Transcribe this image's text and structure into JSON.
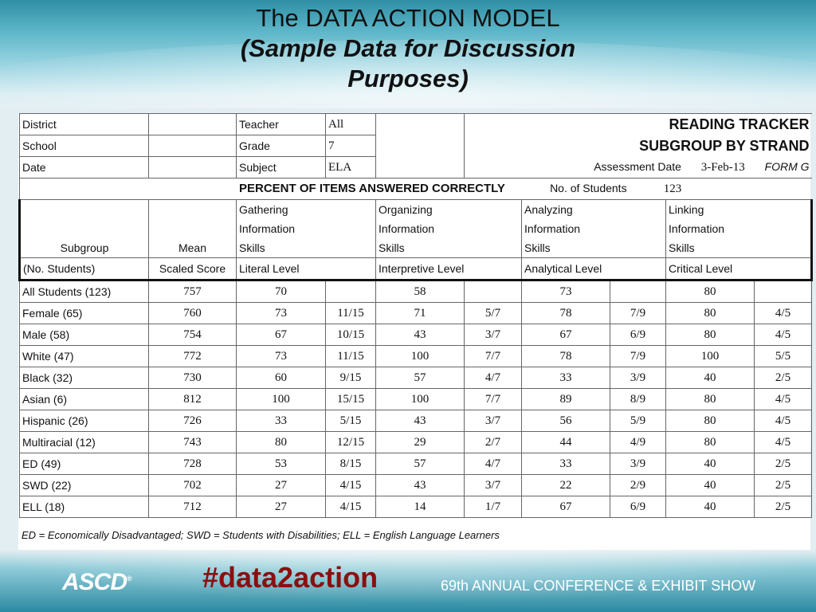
{
  "slide": {
    "title_line1": "The DATA ACTION MODEL",
    "title_line2": "(Sample Data for Discussion",
    "title_line3": "Purposes)"
  },
  "header": {
    "district_label": "District",
    "school_label": "School",
    "date_label": "Date",
    "teacher_label": "Teacher",
    "teacher_value": "All",
    "grade_label": "Grade",
    "grade_value": "7",
    "subject_label": "Subject",
    "subject_value": "ELA",
    "tracker_title": "READING TRACKER",
    "tracker_subtitle": "SUBGROUP BY STRAND",
    "assessment_label": "Assessment Date",
    "assessment_value": "3-Feb-13",
    "form_label": "FORM G",
    "percent_title": "PERCENT OF ITEMS ANSWERED CORRECTLY",
    "students_label": "No. of Students",
    "students_value": "123"
  },
  "columns": {
    "subgroup": "Subgroup",
    "subgroup_sub": "(No. Students)",
    "mean": "Mean",
    "mean_sub": "Scaled Score",
    "strands": [
      {
        "line1": "Gathering",
        "line2": "Information",
        "line3": "Skills",
        "level": "Literal Level"
      },
      {
        "line1": "Organizing",
        "line2": "Information",
        "line3": "Skills",
        "level": "Interpretive Level"
      },
      {
        "line1": "Analyzing",
        "line2": "Information",
        "line3": "Skills",
        "level": "Analytical Level"
      },
      {
        "line1": "Linking",
        "line2": "Information",
        "line3": "Skills",
        "level": "Critical Level"
      }
    ]
  },
  "rows": [
    {
      "group": "All Students (123)",
      "mean": "757",
      "g": "70",
      "gf": "",
      "o": "58",
      "of": "",
      "a": "73",
      "af": "",
      "l": "80",
      "lf": ""
    },
    {
      "group": "Female (65)",
      "mean": "760",
      "g": "73",
      "gf": "11/15",
      "o": "71",
      "of": "5/7",
      "a": "78",
      "af": "7/9",
      "l": "80",
      "lf": "4/5"
    },
    {
      "group": "Male (58)",
      "mean": "754",
      "g": "67",
      "gf": "10/15",
      "o": "43",
      "of": "3/7",
      "a": "67",
      "af": "6/9",
      "l": "80",
      "lf": "4/5"
    },
    {
      "group": "White (47)",
      "mean": "772",
      "g": "73",
      "gf": "11/15",
      "o": "100",
      "of": "7/7",
      "a": "78",
      "af": "7/9",
      "l": "100",
      "lf": "5/5"
    },
    {
      "group": "Black (32)",
      "mean": "730",
      "g": "60",
      "gf": "9/15",
      "o": "57",
      "of": "4/7",
      "a": "33",
      "af": "3/9",
      "l": "40",
      "lf": "2/5"
    },
    {
      "group": "Asian (6)",
      "mean": "812",
      "g": "100",
      "gf": "15/15",
      "o": "100",
      "of": "7/7",
      "a": "89",
      "af": "8/9",
      "l": "80",
      "lf": "4/5"
    },
    {
      "group": "Hispanic (26)",
      "mean": "726",
      "g": "33",
      "gf": "5/15",
      "o": "43",
      "of": "3/7",
      "a": "56",
      "af": "5/9",
      "l": "80",
      "lf": "4/5"
    },
    {
      "group": "Multiracial (12)",
      "mean": "743",
      "g": "80",
      "gf": "12/15",
      "o": "29",
      "of": "2/7",
      "a": "44",
      "af": "4/9",
      "l": "80",
      "lf": "4/5"
    },
    {
      "group": "ED (49)",
      "mean": "728",
      "g": "53",
      "gf": "8/15",
      "o": "57",
      "of": "4/7",
      "a": "33",
      "af": "3/9",
      "l": "40",
      "lf": "2/5"
    },
    {
      "group": "SWD (22)",
      "mean": "702",
      "g": "27",
      "gf": "4/15",
      "o": "43",
      "of": "3/7",
      "a": "22",
      "af": "2/9",
      "l": "40",
      "lf": "2/5"
    },
    {
      "group": "ELL (18)",
      "mean": "712",
      "g": "27",
      "gf": "4/15",
      "o": "14",
      "of": "1/7",
      "a": "67",
      "af": "6/9",
      "l": "40",
      "lf": "2/5"
    }
  ],
  "footnote": "ED = Economically Disadvantaged; SWD = Students with Disabilities; ELL = English Language Learners",
  "footer": {
    "logo": "ASCD",
    "hashtag": "#data2action",
    "conference": "69th ANNUAL CONFERENCE & EXHIBIT SHOW"
  }
}
